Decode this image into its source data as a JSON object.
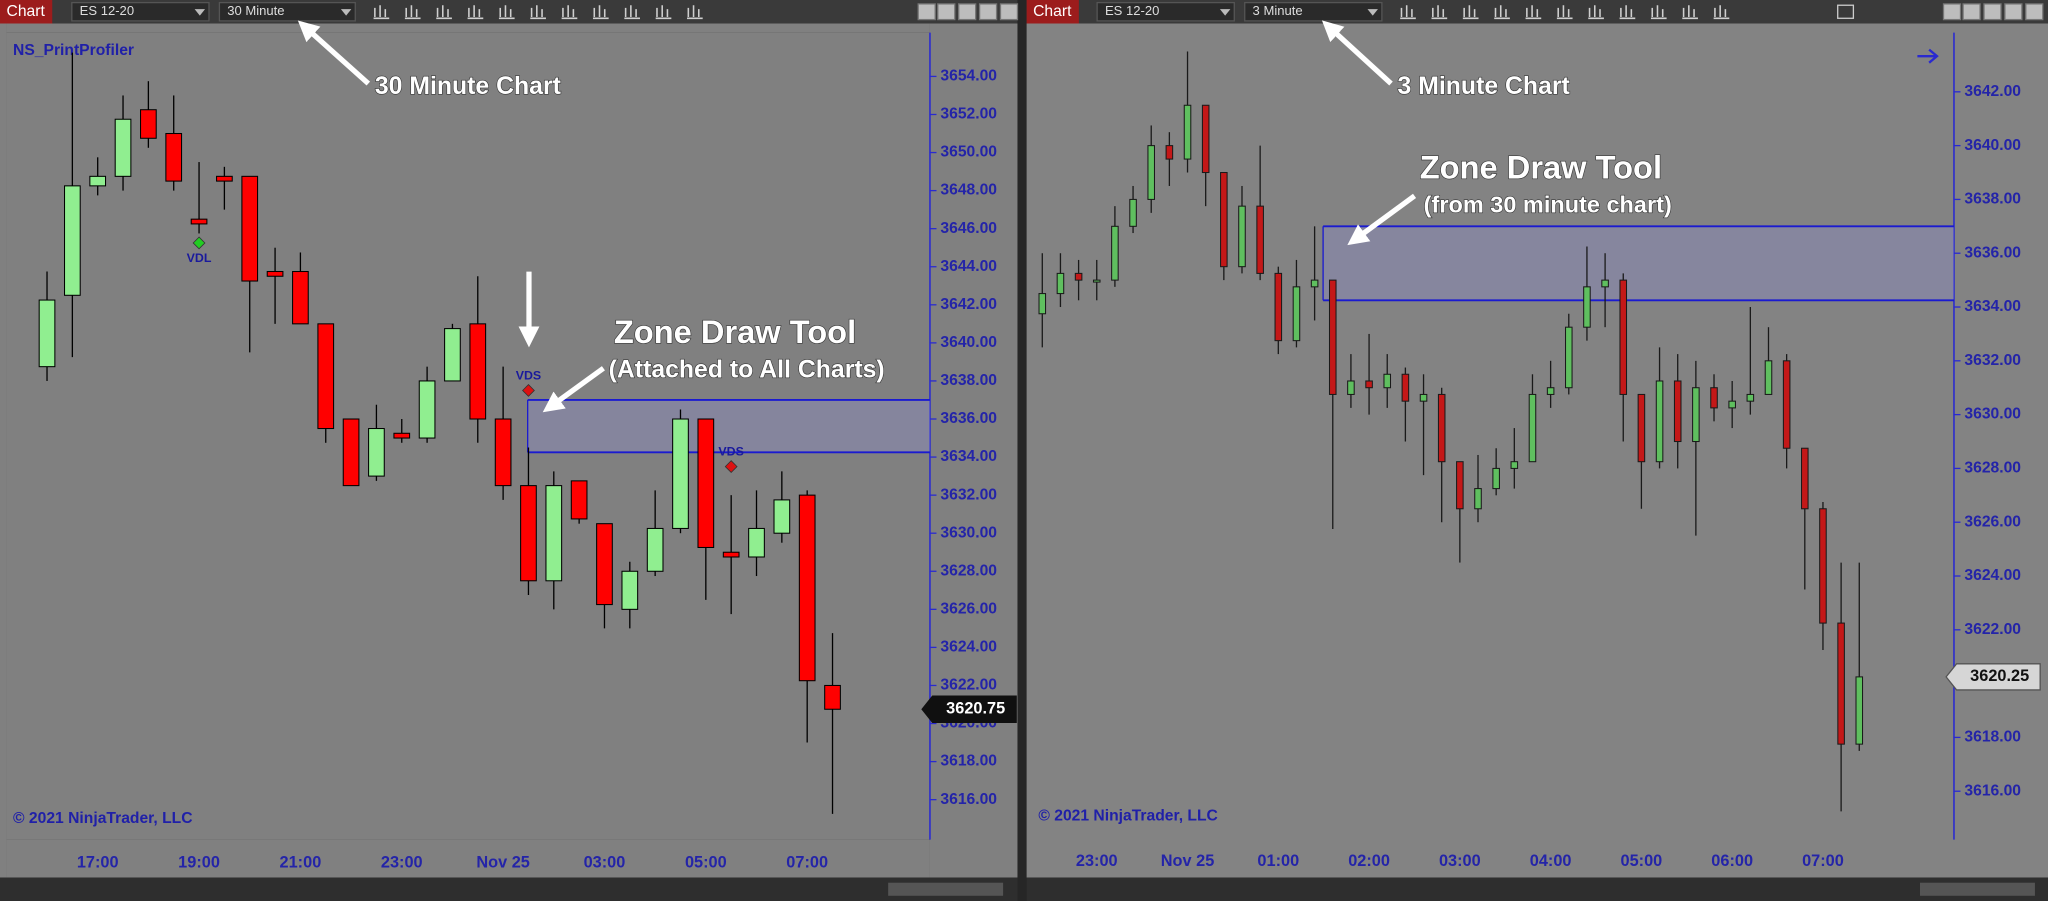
{
  "windows": [
    {
      "tab": "Chart",
      "instrument": "ES 12-20",
      "interval": "30 Minute"
    },
    {
      "tab": "Chart",
      "instrument": "ES 12-20",
      "interval": "3 Minute"
    }
  ],
  "annotations": [
    "30 Minute Chart",
    "Zone Draw Tool",
    "(Attached to All Charts)",
    "3 Minute Chart",
    "Zone Draw Tool",
    "(from 30 minute chart)"
  ],
  "chart_data": [
    {
      "type": "candlestick",
      "indicator": "NS_PrintProfiler",
      "copyright": "© 2021 NinjaTrader, LLC",
      "categories": [
        null,
        null,
        "17:00",
        null,
        null,
        null,
        "19:00",
        null,
        null,
        null,
        "21:00",
        null,
        null,
        null,
        "23:00",
        null,
        null,
        null,
        "Nov 25",
        null,
        null,
        null,
        "03:00",
        null,
        null,
        null,
        "05:00",
        null,
        null,
        null,
        "07:00",
        null
      ],
      "open": [
        3638.75,
        3642.5,
        3648.25,
        3648.75,
        3652.25,
        3651.0,
        3646.5,
        3648.75,
        3648.75,
        3643.75,
        3643.75,
        3641.0,
        3636.0,
        3633.0,
        3635.25,
        3635.0,
        3638.0,
        3641.0,
        3636.0,
        3632.5,
        3627.5,
        3632.75,
        3630.5,
        3626.0,
        3628.0,
        3630.25,
        3636.0,
        3629.0,
        3628.75,
        3630.0,
        3632.0,
        3622.0
      ],
      "high": [
        3643.75,
        3655.25,
        3649.75,
        3653.0,
        3653.75,
        3653.0,
        3649.5,
        3649.25,
        3648.75,
        3645.0,
        3644.75,
        3641.0,
        3636.0,
        3636.75,
        3636.0,
        3638.75,
        3641.0,
        3643.5,
        3638.75,
        3634.5,
        3633.25,
        3632.75,
        3630.5,
        3628.5,
        3632.25,
        3636.5,
        3636.0,
        3632.0,
        3632.25,
        3633.25,
        3632.25,
        3624.75
      ],
      "low": [
        3638.0,
        3639.25,
        3647.75,
        3648.0,
        3650.25,
        3648.0,
        3645.75,
        3647.0,
        3639.5,
        3641.0,
        3641.0,
        3634.75,
        3632.5,
        3632.75,
        3634.75,
        3634.75,
        3638.0,
        3634.75,
        3631.75,
        3626.75,
        3626.0,
        3630.5,
        3625.0,
        3625.0,
        3627.75,
        3630.0,
        3626.5,
        3625.75,
        3627.75,
        3629.5,
        3619.0,
        3615.25
      ],
      "close": [
        3642.25,
        3648.25,
        3648.75,
        3651.75,
        3650.75,
        3648.5,
        3646.25,
        3648.5,
        3643.25,
        3643.5,
        3641.0,
        3635.5,
        3632.5,
        3635.5,
        3635.0,
        3638.0,
        3640.75,
        3636.0,
        3632.5,
        3627.5,
        3632.5,
        3630.75,
        3626.25,
        3628.0,
        3630.25,
        3636.0,
        3629.25,
        3628.75,
        3630.25,
        3631.75,
        3622.25,
        3620.75
      ],
      "up_color": "#90ee90",
      "down_color": "#ff0000",
      "wick_color": "#000000",
      "ylim": [
        3613.9,
        3656.3
      ],
      "yticks": [
        {
          "value": 3616,
          "label": "3616.00"
        },
        {
          "value": 3618,
          "label": "3618.00"
        },
        {
          "value": 3620,
          "label": "3620.00"
        },
        {
          "value": 3622,
          "label": "3622.00"
        },
        {
          "value": 3624,
          "label": "3624.00"
        },
        {
          "value": 3626,
          "label": "3626.00"
        },
        {
          "value": 3628,
          "label": "3628.00"
        },
        {
          "value": 3630,
          "label": "3630.00"
        },
        {
          "value": 3632,
          "label": "3632.00"
        },
        {
          "value": 3634,
          "label": "3634.00"
        },
        {
          "value": 3636,
          "label": "3636.00"
        },
        {
          "value": 3638,
          "label": "3638.00"
        },
        {
          "value": 3640,
          "label": "3640.00"
        },
        {
          "value": 3642,
          "label": "3642.00"
        },
        {
          "value": 3644,
          "label": "3644.00"
        },
        {
          "value": 3646,
          "label": "3646.00"
        },
        {
          "value": 3648,
          "label": "3648.00"
        },
        {
          "value": 3650,
          "label": "3650.00"
        },
        {
          "value": 3652,
          "label": "3652.00"
        },
        {
          "value": 3654,
          "label": "3654.00"
        }
      ],
      "grid": false,
      "last_price": 3620.75,
      "zone": {
        "high": 3637.0,
        "low": 3634.25,
        "color": "#8c8cc8",
        "line_color": "#1a1ad0"
      },
      "markers": [
        {
          "label": "VDL",
          "index": 6,
          "price": 3645.25,
          "color": "#22cc22",
          "side": "below"
        },
        {
          "label": "VDS",
          "index": 19,
          "price": 3637.5,
          "color": "#dd1111",
          "side": "above"
        },
        {
          "label": "VDS",
          "index": 27,
          "price": 3633.5,
          "color": "#dd1111",
          "side": "above"
        }
      ]
    },
    {
      "type": "candlestick",
      "copyright": "© 2021 NinjaTrader, LLC",
      "categories": [
        null,
        null,
        null,
        "23:00",
        null,
        null,
        null,
        null,
        "Nov 25",
        null,
        null,
        null,
        null,
        "01:00",
        null,
        null,
        null,
        null,
        "02:00",
        null,
        null,
        null,
        null,
        "03:00",
        null,
        null,
        null,
        null,
        "04:00",
        null,
        null,
        null,
        null,
        "05:00",
        null,
        null,
        null,
        null,
        "06:00",
        null,
        null,
        null,
        null,
        "07:00",
        null,
        null
      ],
      "open": [
        3633.75,
        3634.5,
        3635.25,
        3635.0,
        3635.0,
        3637.0,
        3638.0,
        3640.0,
        3639.5,
        3641.5,
        3639.0,
        3635.5,
        3637.75,
        3635.25,
        3632.75,
        3634.75,
        3635.0,
        3630.75,
        3631.25,
        3631.0,
        3631.5,
        3630.5,
        3630.75,
        3628.25,
        3626.5,
        3627.25,
        3628.0,
        3628.25,
        3630.75,
        3631.0,
        3633.25,
        3634.75,
        3635.0,
        3630.75,
        3628.25,
        3631.25,
        3629.0,
        3631.0,
        3630.25,
        3630.5,
        3630.75,
        3632.0,
        3628.75,
        3626.5,
        3622.25,
        3617.75
      ],
      "high": [
        3636.0,
        3636.0,
        3635.75,
        3635.75,
        3637.75,
        3638.5,
        3640.75,
        3640.5,
        3643.5,
        3641.5,
        3639.0,
        3638.5,
        3640.0,
        3635.5,
        3635.75,
        3637.0,
        3635.0,
        3632.25,
        3633.0,
        3632.25,
        3631.75,
        3631.5,
        3631.0,
        3628.25,
        3628.5,
        3628.75,
        3629.5,
        3631.5,
        3632.0,
        3633.75,
        3636.25,
        3636.0,
        3635.25,
        3630.75,
        3632.5,
        3632.25,
        3632.0,
        3631.5,
        3631.25,
        3634.0,
        3633.25,
        3632.25,
        3628.75,
        3626.75,
        3624.5,
        3624.5
      ],
      "low": [
        3632.5,
        3634.0,
        3634.25,
        3634.25,
        3634.75,
        3636.75,
        3637.5,
        3638.5,
        3639.0,
        3637.75,
        3635.0,
        3635.25,
        3635.0,
        3632.25,
        3632.5,
        3633.5,
        3625.75,
        3630.25,
        3630.0,
        3630.25,
        3629.0,
        3627.75,
        3626.0,
        3624.5,
        3626.0,
        3627.0,
        3627.25,
        3628.25,
        3630.25,
        3630.75,
        3632.75,
        3633.25,
        3629.0,
        3626.5,
        3628.0,
        3628.0,
        3625.5,
        3629.75,
        3629.5,
        3630.0,
        3630.75,
        3628.0,
        3623.5,
        3621.25,
        3615.25,
        3617.5
      ],
      "close": [
        3634.5,
        3635.25,
        3635.0,
        3635.0,
        3637.0,
        3638.0,
        3640.0,
        3639.5,
        3641.5,
        3639.0,
        3635.5,
        3637.75,
        3635.25,
        3632.75,
        3634.75,
        3635.0,
        3630.75,
        3631.25,
        3631.0,
        3631.5,
        3630.5,
        3630.75,
        3628.25,
        3626.5,
        3627.25,
        3628.0,
        3628.25,
        3630.75,
        3631.0,
        3633.25,
        3634.75,
        3635.0,
        3630.75,
        3628.25,
        3631.25,
        3629.0,
        3631.0,
        3630.25,
        3630.5,
        3630.75,
        3632.0,
        3628.75,
        3626.5,
        3622.25,
        3617.75,
        3620.25
      ],
      "up_color": "#5fbf5f",
      "down_color": "#c41818",
      "wick_color": "#1a1a1a",
      "ylim": [
        3614.2,
        3644.2
      ],
      "yticks": [
        {
          "value": 3616,
          "label": "3616.00"
        },
        {
          "value": 3618,
          "label": "3618.00"
        },
        {
          "value": 3620,
          "label": "3620.00"
        },
        {
          "value": 3622,
          "label": "3622.00"
        },
        {
          "value": 3624,
          "label": "3624.00"
        },
        {
          "value": 3626,
          "label": "3626.00"
        },
        {
          "value": 3628,
          "label": "3628.00"
        },
        {
          "value": 3630,
          "label": "3630.00"
        },
        {
          "value": 3632,
          "label": "3632.00"
        },
        {
          "value": 3634,
          "label": "3634.00"
        },
        {
          "value": 3636,
          "label": "3636.00"
        },
        {
          "value": 3638,
          "label": "3638.00"
        },
        {
          "value": 3640,
          "label": "3640.00"
        },
        {
          "value": 3642,
          "label": "3642.00"
        }
      ],
      "grid": false,
      "last_price": 3620.25,
      "zone": {
        "high": 3637.0,
        "low": 3634.25,
        "color": "#8c8cc8",
        "line_color": "#1a1ad0"
      }
    }
  ]
}
